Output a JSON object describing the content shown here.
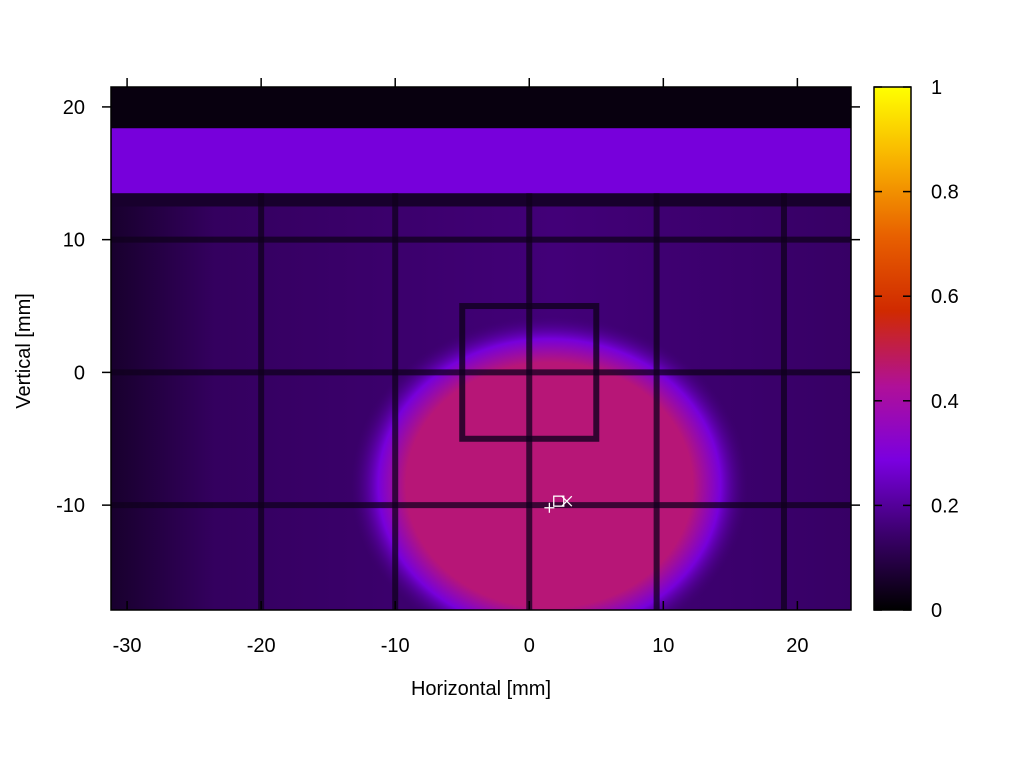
{
  "chart_data": {
    "type": "heatmap",
    "title": "",
    "xlabel": "Horizontal [mm]",
    "ylabel": "Vertical [mm]",
    "xlim": [
      -31.2,
      24
    ],
    "ylim": [
      -17.9,
      21.5
    ],
    "x_ticks": [
      -30,
      -20,
      -10,
      0,
      10,
      20
    ],
    "y_ticks": [
      -10,
      0,
      10,
      20
    ],
    "colorbar": {
      "range": [
        0,
        1
      ],
      "ticks": [
        0,
        0.2,
        0.4,
        0.6,
        0.8,
        1
      ],
      "tick_labels": [
        "0",
        "0.2",
        "0.4",
        "0.6",
        "0.8",
        "1"
      ],
      "colormap": [
        "#000000",
        "#3a006a",
        "#7a00e0",
        "#b01098",
        "#d02a00",
        "#e86000",
        "#f8b000",
        "#ffff00"
      ]
    },
    "background": {
      "mean_level": 0.16,
      "left_edge_level": 0.06,
      "dark_band_top": {
        "y_from": 18.4,
        "y_to": 21.5,
        "level": 0.02
      },
      "bright_band": {
        "y_from": 13.5,
        "y_to": 18.4,
        "level": 0.28
      },
      "dark_band_below": {
        "y_from": 12.5,
        "y_to": 13.5,
        "level": 0.06
      }
    },
    "spot": {
      "center": [
        1.5,
        -8.5
      ],
      "radius_x": 11,
      "radius_y": 9.5,
      "level": 0.46,
      "halo_level": 0.28
    },
    "grid_wires_x": [
      -20,
      -10,
      0,
      9.5,
      19
    ],
    "grid_wires_y": [
      10,
      0,
      -10
    ],
    "grid_wire_level": 0.04,
    "frame": {
      "x_from": -5,
      "x_to": 5,
      "y_from": -5,
      "y_to": 5,
      "level": 0.04
    },
    "markers": [
      {
        "symbol": "+",
        "x": 1.5,
        "y": -10.2
      },
      {
        "symbol": "square",
        "x": 2.2,
        "y": -9.7
      },
      {
        "symbol": "x",
        "x": 2.8,
        "y": -9.7
      }
    ]
  }
}
